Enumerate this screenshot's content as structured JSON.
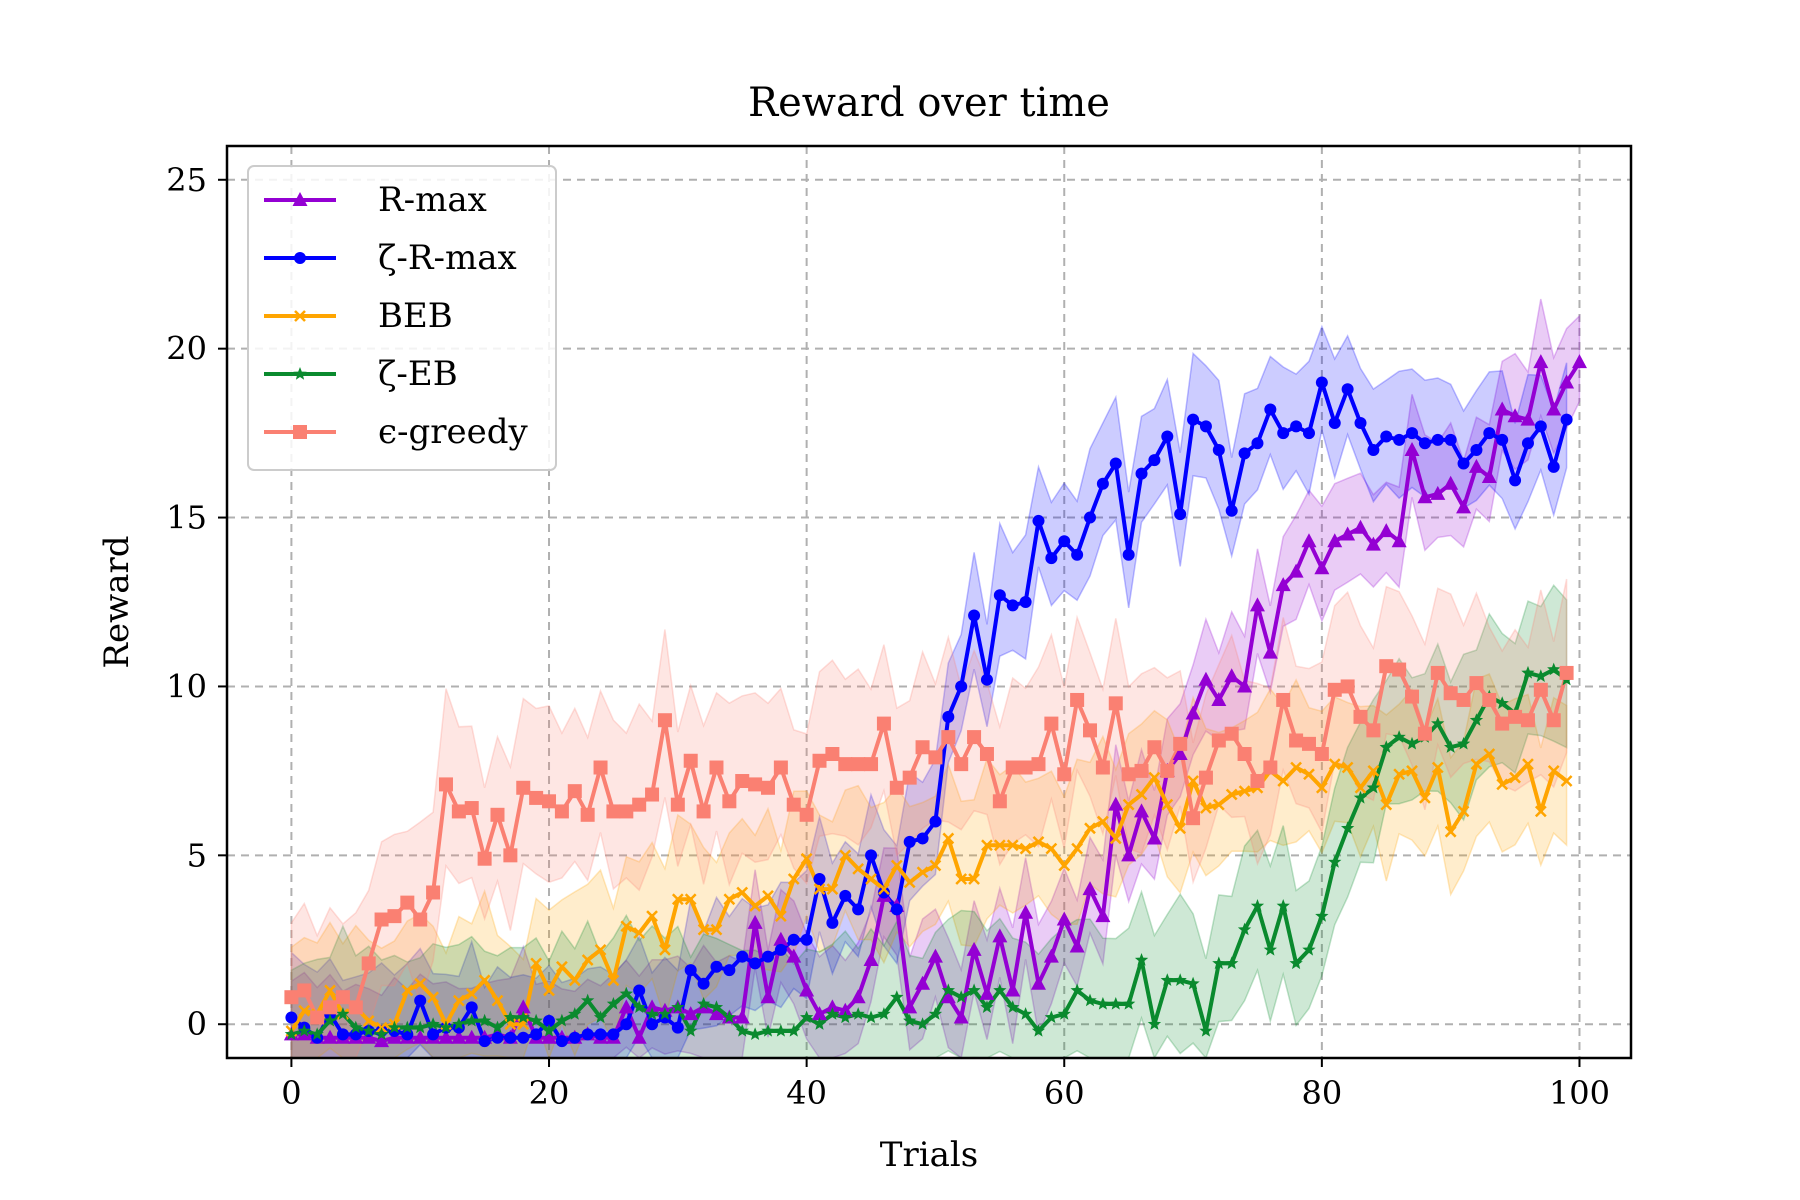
{
  "chart_data": {
    "type": "line",
    "title": "Reward over time",
    "xlabel": "Trials",
    "ylabel": "Reward",
    "xlim": [
      -5,
      104
    ],
    "ylim": [
      -1,
      26
    ],
    "xticks": [
      0,
      20,
      40,
      60,
      80,
      100
    ],
    "yticks": [
      0,
      5,
      10,
      15,
      20,
      25
    ],
    "grid": true,
    "legend_position": "top-left",
    "series": [
      {
        "name": "R-max",
        "color": "#9400D3",
        "marker": "triangle",
        "band": 1.8,
        "values": [
          -0.3,
          -0.3,
          -0.4,
          -0.4,
          -0.4,
          -0.4,
          -0.4,
          -0.5,
          -0.4,
          -0.4,
          -0.4,
          -0.4,
          -0.4,
          -0.4,
          -0.4,
          -0.4,
          -0.3,
          -0.4,
          0.5,
          -0.4,
          -0.4,
          -0.4,
          -0.4,
          -0.3,
          -0.4,
          -0.4,
          0.5,
          -0.4,
          0.5,
          0.4,
          0.5,
          0.3,
          0.5,
          0.3,
          0.2,
          0.2,
          3.0,
          0.8,
          2.5,
          2.0,
          1.0,
          0.3,
          0.5,
          0.4,
          0.8,
          1.9,
          3.8,
          3.5,
          0.5,
          1.2,
          2.0,
          0.8,
          0.2,
          2.2,
          0.9,
          2.6,
          1.0,
          3.3,
          1.2,
          2.0,
          3.1,
          2.3,
          4.0,
          3.2,
          6.5,
          5.0,
          6.3,
          5.5,
          7.5,
          8.0,
          9.2,
          10.2,
          9.6,
          10.3,
          10.0,
          12.4,
          11.0,
          13.0,
          13.4,
          14.3,
          13.5,
          14.3,
          14.5,
          14.7,
          14.2,
          14.6,
          14.3,
          17.0,
          15.6,
          15.7,
          16.0,
          15.3,
          16.5,
          16.2,
          18.2,
          18.0,
          17.9,
          19.6,
          18.2,
          19.0,
          19.6
        ]
      },
      {
        "name": "ζ-R-max",
        "color": "#0000FF",
        "marker": "circle",
        "band": 2.0,
        "values": [
          0.2,
          -0.1,
          -0.4,
          0.3,
          -0.3,
          -0.3,
          -0.2,
          -0.2,
          -0.2,
          -0.3,
          0.7,
          -0.3,
          -0.1,
          -0.1,
          0.5,
          -0.5,
          -0.4,
          -0.4,
          -0.4,
          -0.3,
          0.1,
          -0.5,
          -0.4,
          -0.3,
          -0.3,
          -0.3,
          0.0,
          1.0,
          0.0,
          0.2,
          -0.1,
          1.6,
          1.2,
          1.7,
          1.6,
          2.0,
          1.8,
          2.0,
          2.2,
          2.5,
          2.5,
          4.3,
          3.0,
          3.8,
          3.4,
          5.0,
          3.9,
          3.4,
          5.4,
          5.5,
          6.0,
          9.1,
          10.0,
          12.1,
          10.2,
          12.7,
          12.4,
          12.5,
          14.9,
          13.8,
          14.3,
          13.9,
          15.0,
          16.0,
          16.6,
          13.9,
          16.3,
          16.7,
          17.4,
          15.1,
          17.9,
          17.7,
          17.0,
          15.2,
          16.9,
          17.2,
          18.2,
          17.5,
          17.7,
          17.5,
          19.0,
          17.8,
          18.8,
          17.8,
          17.0,
          17.4,
          17.3,
          17.5,
          17.2,
          17.3,
          17.3,
          16.6,
          17.0,
          17.5,
          17.3,
          16.1,
          17.2,
          17.7,
          16.5,
          17.9
        ]
      },
      {
        "name": "BEB",
        "color": "#FFA500",
        "marker": "x",
        "band": 2.5,
        "values": [
          -0.2,
          0.4,
          0.3,
          1.0,
          0.3,
          0.5,
          0.1,
          -0.1,
          0.0,
          1.0,
          1.2,
          0.8,
          0.0,
          0.7,
          0.9,
          1.3,
          0.7,
          0.0,
          0.0,
          1.8,
          1.0,
          1.7,
          1.3,
          1.9,
          2.2,
          1.3,
          2.9,
          2.7,
          3.2,
          2.2,
          3.7,
          3.7,
          2.8,
          2.8,
          3.7,
          3.9,
          3.5,
          3.8,
          3.2,
          4.3,
          4.9,
          4.0,
          4.0,
          5.0,
          4.6,
          4.3,
          4.0,
          4.7,
          4.2,
          4.5,
          4.7,
          5.5,
          4.3,
          4.3,
          5.3,
          5.3,
          5.3,
          5.2,
          5.4,
          5.2,
          4.7,
          5.2,
          5.8,
          6.0,
          5.5,
          6.5,
          6.8,
          7.3,
          6.5,
          5.8,
          7.2,
          6.4,
          6.5,
          6.8,
          6.9,
          7.0,
          7.5,
          7.2,
          7.6,
          7.4,
          7.0,
          7.7,
          7.6,
          7.0,
          7.5,
          6.5,
          7.4,
          7.5,
          6.7,
          7.6,
          5.7,
          6.3,
          7.7,
          8.0,
          7.1,
          7.3,
          7.7,
          6.3,
          7.5,
          7.2
        ]
      },
      {
        "name": "ζ-EB",
        "color": "#0A8A2E",
        "marker": "star",
        "band": 2.5,
        "values": [
          -0.3,
          -0.2,
          -0.3,
          0.1,
          0.3,
          -0.1,
          -0.2,
          -0.3,
          -0.1,
          -0.1,
          -0.1,
          0.0,
          -0.1,
          0.0,
          0.1,
          0.1,
          -0.1,
          0.2,
          0.2,
          0.1,
          -0.2,
          0.1,
          0.3,
          0.7,
          0.2,
          0.6,
          0.9,
          0.5,
          0.3,
          0.3,
          0.5,
          -0.2,
          0.6,
          0.5,
          0.2,
          -0.2,
          -0.3,
          -0.2,
          -0.2,
          -0.2,
          0.2,
          0.0,
          0.3,
          0.2,
          0.3,
          0.2,
          0.3,
          0.8,
          0.1,
          0.0,
          0.3,
          1.0,
          0.8,
          1.0,
          0.5,
          1.0,
          0.5,
          0.3,
          -0.2,
          0.2,
          0.3,
          1.0,
          0.7,
          0.6,
          0.6,
          0.6,
          1.9,
          0.0,
          1.3,
          1.3,
          1.2,
          -0.2,
          1.8,
          1.8,
          2.8,
          3.5,
          2.2,
          3.5,
          1.8,
          2.2,
          3.2,
          4.8,
          5.8,
          6.7,
          7.0,
          8.2,
          8.5,
          8.3,
          8.5,
          8.9,
          8.2,
          8.3,
          9.0,
          9.7,
          9.5,
          9.2,
          10.4,
          10.3,
          10.5,
          10.2
        ]
      },
      {
        "name": "ϵ-greedy",
        "color": "#FA8072",
        "marker": "square",
        "band": 2.8,
        "values": [
          0.8,
          1.0,
          0.2,
          0.5,
          0.8,
          0.5,
          1.8,
          3.1,
          3.2,
          3.6,
          3.1,
          3.9,
          7.1,
          6.3,
          6.4,
          4.9,
          6.2,
          5.0,
          7.0,
          6.7,
          6.6,
          6.3,
          6.9,
          6.2,
          7.6,
          6.3,
          6.3,
          6.5,
          6.8,
          9.0,
          6.5,
          7.8,
          6.3,
          7.6,
          6.6,
          7.2,
          7.1,
          7.0,
          7.6,
          6.5,
          6.2,
          7.8,
          8.0,
          7.7,
          7.7,
          7.7,
          8.9,
          7.0,
          7.3,
          8.2,
          7.9,
          8.5,
          7.7,
          8.5,
          8.0,
          6.6,
          7.6,
          7.6,
          7.7,
          8.9,
          7.4,
          9.6,
          8.7,
          7.6,
          9.5,
          7.4,
          7.5,
          8.2,
          7.5,
          8.3,
          6.1,
          7.3,
          8.4,
          8.6,
          8.0,
          7.2,
          7.6,
          9.6,
          8.4,
          8.3,
          8.0,
          9.9,
          10.0,
          9.1,
          8.7,
          10.6,
          10.5,
          9.7,
          8.6,
          10.4,
          9.8,
          9.6,
          10.1,
          9.6,
          8.9,
          9.1,
          9.0,
          9.9,
          9.0,
          10.4
        ]
      }
    ]
  }
}
